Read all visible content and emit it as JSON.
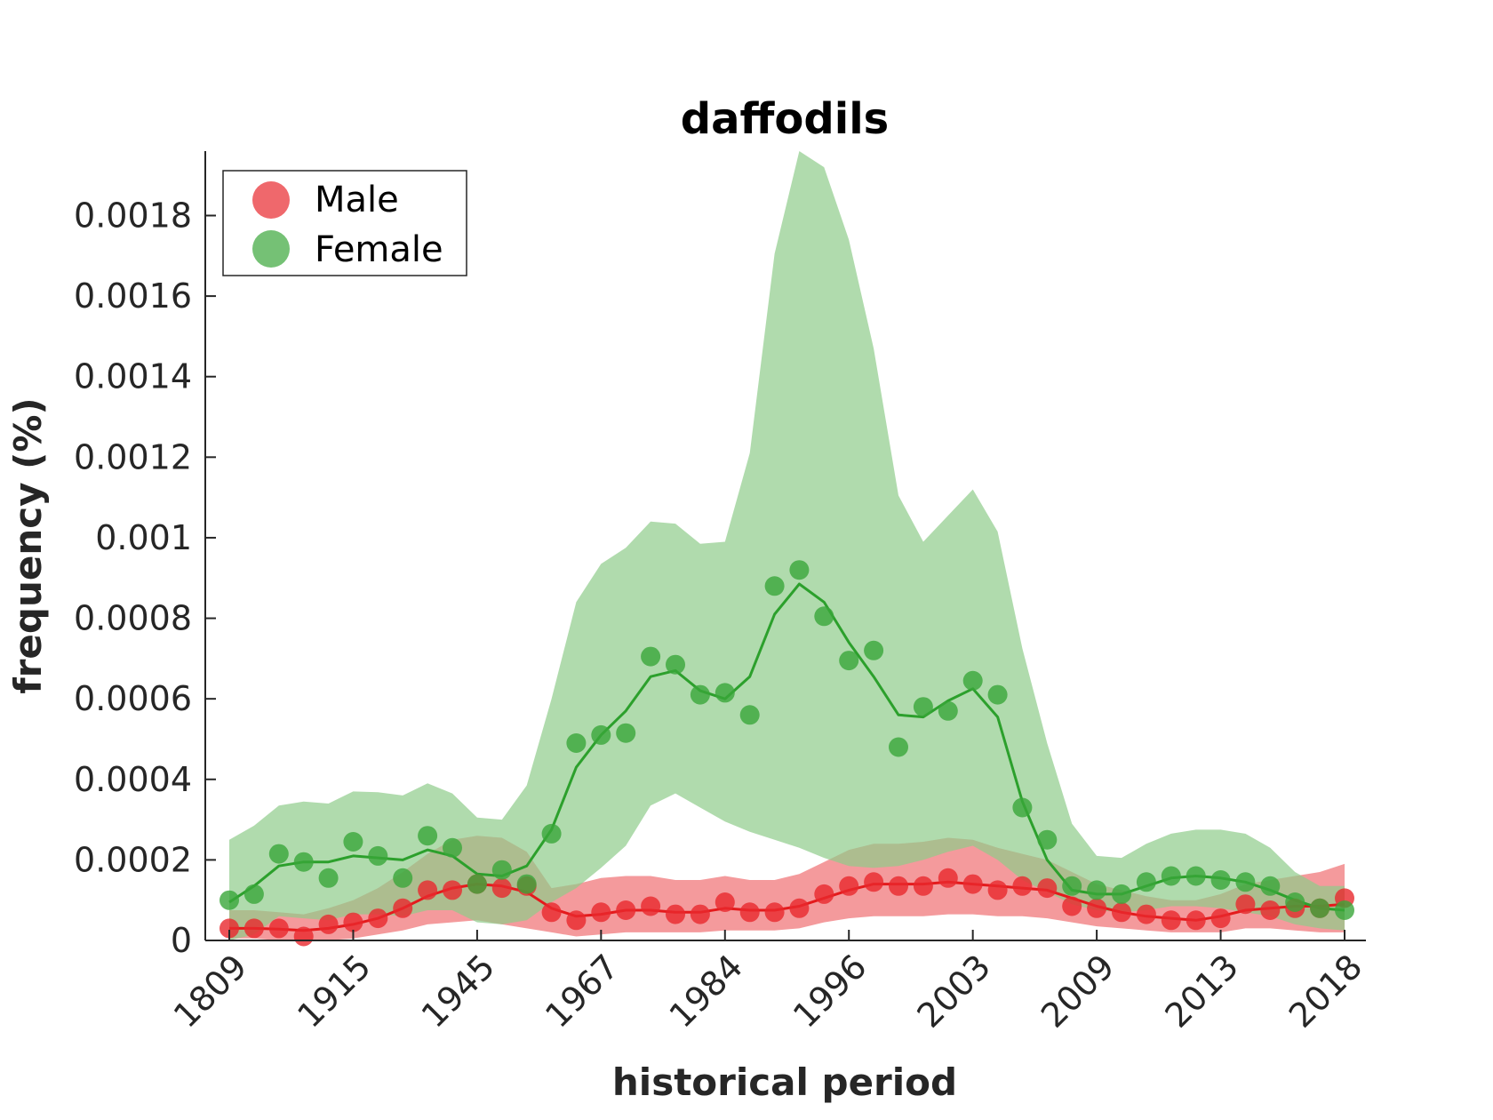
{
  "chart_data": {
    "type": "line",
    "title": "daffodils",
    "xlabel": "historical period",
    "ylabel": "frequency (%)",
    "ylim": [
      0,
      0.00196
    ],
    "yticks": [
      0,
      0.0002,
      0.0004,
      0.0006,
      0.0008,
      0.001,
      0.0012,
      0.0014,
      0.0016,
      0.0018
    ],
    "ytick_labels": [
      "0",
      "0.0002",
      "0.0004",
      "0.0006",
      "0.0008",
      "0.001",
      "0.0012",
      "0.0014",
      "0.0016",
      "0.0018"
    ],
    "x_count": 46,
    "xticks": [
      0,
      5,
      10,
      15,
      20,
      25,
      30,
      35,
      40,
      45
    ],
    "xtick_labels": [
      "1809",
      "1915",
      "1945",
      "1967",
      "1984",
      "1996",
      "2003",
      "2009",
      "2013",
      "2018"
    ],
    "legend": {
      "position": "top-left",
      "entries": [
        "Male",
        "Female"
      ]
    },
    "grid": false,
    "series": [
      {
        "name": "Male",
        "color": "#e41a1c",
        "point_color": "#e8282d",
        "band_color": "#ef6f72",
        "points": [
          3e-05,
          3e-05,
          3e-05,
          1e-05,
          4e-05,
          4.5e-05,
          5.5e-05,
          8e-05,
          0.000125,
          0.000125,
          0.00014,
          0.00013,
          0.000135,
          7e-05,
          5e-05,
          7e-05,
          7.5e-05,
          8.5e-05,
          6.5e-05,
          6.5e-05,
          9.5e-05,
          7e-05,
          7e-05,
          8e-05,
          0.000115,
          0.000135,
          0.000145,
          0.000135,
          0.000135,
          0.000155,
          0.00014,
          0.000125,
          0.000135,
          0.00013,
          8.5e-05,
          8e-05,
          7e-05,
          6.5e-05,
          5e-05,
          5e-05,
          5.5e-05,
          9e-05,
          7.5e-05,
          8e-05,
          8e-05,
          0.000105
        ],
        "trend": [
          3e-05,
          3e-05,
          2.8e-05,
          2.5e-05,
          3e-05,
          4e-05,
          5.5e-05,
          8e-05,
          0.00011,
          0.00013,
          0.00014,
          0.000135,
          0.00012,
          8e-05,
          6e-05,
          6.5e-05,
          7.5e-05,
          7.5e-05,
          7e-05,
          7e-05,
          8e-05,
          7.5e-05,
          7.5e-05,
          8.5e-05,
          0.000105,
          0.000125,
          0.00014,
          0.00014,
          0.00014,
          0.000145,
          0.00014,
          0.000135,
          0.00013,
          0.000125,
          0.000105,
          8.5e-05,
          7e-05,
          6e-05,
          5.5e-05,
          5e-05,
          6e-05,
          7.5e-05,
          8e-05,
          8.5e-05,
          8.5e-05,
          9e-05
        ],
        "band_upper": [
          7.5e-05,
          7.5e-05,
          7e-05,
          6.5e-05,
          8e-05,
          0.0001,
          0.00013,
          0.00017,
          0.000215,
          0.00025,
          0.00026,
          0.000255,
          0.00022,
          0.00013,
          0.00014,
          0.000155,
          0.00016,
          0.00016,
          0.00015,
          0.00015,
          0.00016,
          0.00015,
          0.00015,
          0.000165,
          0.000195,
          0.000225,
          0.00024,
          0.00024,
          0.000245,
          0.000255,
          0.00025,
          0.00023,
          0.000215,
          0.0002,
          0.00017,
          0.00014,
          0.000125,
          0.00011,
          0.0001,
          0.0001,
          0.000115,
          0.00014,
          0.00015,
          0.00016,
          0.00017,
          0.00019
        ],
        "band_lower": [
          5e-06,
          5e-06,
          0.0,
          0.0,
          0.0,
          5e-06,
          1.5e-05,
          2.5e-05,
          4e-05,
          4.5e-05,
          5e-05,
          4e-05,
          3e-05,
          2e-05,
          1e-05,
          1.5e-05,
          2e-05,
          2e-05,
          2e-05,
          2e-05,
          2.5e-05,
          2.5e-05,
          2.5e-05,
          3e-05,
          4.5e-05,
          5.5e-05,
          6e-05,
          6e-05,
          6e-05,
          6.5e-05,
          6.5e-05,
          6e-05,
          6e-05,
          5.5e-05,
          4.5e-05,
          3.5e-05,
          3e-05,
          2.5e-05,
          2e-05,
          2e-05,
          2e-05,
          3e-05,
          3e-05,
          2.5e-05,
          2e-05,
          2e-05
        ]
      },
      {
        "name": "Female",
        "color": "#2ca02c",
        "point_color": "#3aa63a",
        "band_color": "#8fcc8a",
        "points": [
          0.0001,
          0.000115,
          0.000215,
          0.000195,
          0.000155,
          0.000245,
          0.00021,
          0.000155,
          0.00026,
          0.00023,
          0.00014,
          0.000175,
          0.00014,
          0.000265,
          0.00049,
          0.00051,
          0.000515,
          0.000705,
          0.000685,
          0.00061,
          0.000615,
          0.00056,
          0.00088,
          0.00092,
          0.000805,
          0.000695,
          0.00072,
          0.00048,
          0.00058,
          0.00057,
          0.000645,
          0.00061,
          0.00033,
          0.00025,
          0.000135,
          0.000125,
          0.000115,
          0.000145,
          0.00016,
          0.00016,
          0.00015,
          0.000145,
          0.000135,
          9.5e-05,
          8e-05,
          7.5e-05
        ],
        "trend": [
          9.5e-05,
          0.000135,
          0.000185,
          0.000195,
          0.000195,
          0.00021,
          0.000205,
          0.0002,
          0.000225,
          0.00021,
          0.000165,
          0.00016,
          0.000185,
          0.000275,
          0.00043,
          0.00051,
          0.00057,
          0.000655,
          0.00067,
          0.00062,
          0.0006,
          0.000655,
          0.00081,
          0.000885,
          0.00084,
          0.00074,
          0.000655,
          0.00056,
          0.000555,
          0.000595,
          0.000625,
          0.000555,
          0.000345,
          0.0002,
          0.000125,
          0.000115,
          0.000115,
          0.000135,
          0.000155,
          0.00016,
          0.000155,
          0.000145,
          0.000125,
          0.0001,
          8e-05,
          7.5e-05
        ],
        "band_upper": [
          0.00025,
          0.000285,
          0.000335,
          0.000345,
          0.00034,
          0.00037,
          0.000368,
          0.00036,
          0.00039,
          0.000365,
          0.000305,
          0.0003,
          0.000385,
          0.0006,
          0.00084,
          0.000935,
          0.000975,
          0.00104,
          0.001035,
          0.000985,
          0.00099,
          0.00121,
          0.001705,
          0.00196,
          0.00192,
          0.00174,
          0.00147,
          0.001105,
          0.00099,
          0.001055,
          0.00112,
          0.001015,
          0.000725,
          0.00049,
          0.00029,
          0.00021,
          0.000205,
          0.00024,
          0.000265,
          0.000275,
          0.000275,
          0.000265,
          0.00023,
          0.00017,
          0.000135,
          0.000135
        ],
        "band_lower": [
          0.0,
          1.5e-05,
          6e-05,
          5.5e-05,
          5e-05,
          6.5e-05,
          6.5e-05,
          6e-05,
          7.5e-05,
          7.5e-05,
          4.5e-05,
          4e-05,
          5e-05,
          9.5e-05,
          0.00013,
          0.00018,
          0.000235,
          0.000335,
          0.000365,
          0.00033,
          0.000295,
          0.00027,
          0.00025,
          0.00023,
          0.000205,
          0.000185,
          0.00018,
          0.000185,
          0.0002,
          0.00022,
          0.000235,
          0.0002,
          0.00015,
          0.00012,
          9e-05,
          7.5e-05,
          7e-05,
          7.5e-05,
          8.5e-05,
          8.5e-05,
          8e-05,
          7e-05,
          6e-05,
          4e-05,
          3e-05,
          2.5e-05
        ]
      }
    ]
  }
}
